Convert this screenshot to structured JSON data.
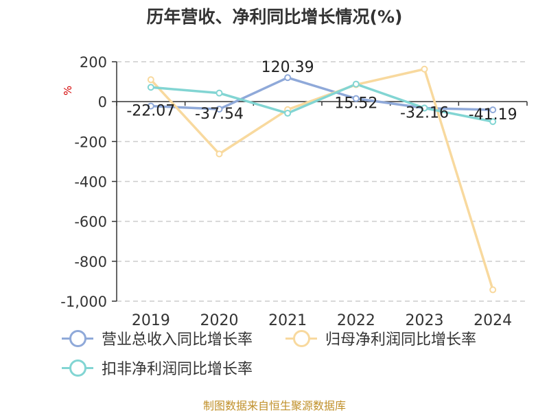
{
  "chart_data": {
    "type": "line",
    "title": "历年营收、净利同比增长情况(%)",
    "ylabel": "%",
    "categories": [
      "2019",
      "2020",
      "2021",
      "2022",
      "2023",
      "2024"
    ],
    "ylim": [
      -1000,
      200
    ],
    "yticks": [
      200,
      0,
      -200,
      -400,
      -600,
      -800,
      -1000
    ],
    "ytick_labels": [
      "200",
      "0",
      "-200",
      "-400",
      "-600",
      "-800",
      "-1,000"
    ],
    "grid": true,
    "legend_position": "bottom",
    "series": [
      {
        "name": "营业总收入同比增长率",
        "color": "#8fa9d9",
        "values": [
          -22.07,
          -37.54,
          120.39,
          15.52,
          -32.16,
          -41.19
        ],
        "labels": [
          "-22.07",
          "-37.54",
          "120.39",
          "15.52",
          "-32.16",
          "-41.19"
        ]
      },
      {
        "name": "归母净利润同比增长率",
        "color": "#f8d99e",
        "values": [
          110,
          -262,
          -40,
          85,
          163,
          -943
        ]
      },
      {
        "name": "扣非净利润同比增长率",
        "color": "#82d5d3",
        "values": [
          72,
          43,
          -58,
          88,
          -32,
          -100
        ]
      }
    ]
  },
  "source": "制图数据来自恒生聚源数据库"
}
